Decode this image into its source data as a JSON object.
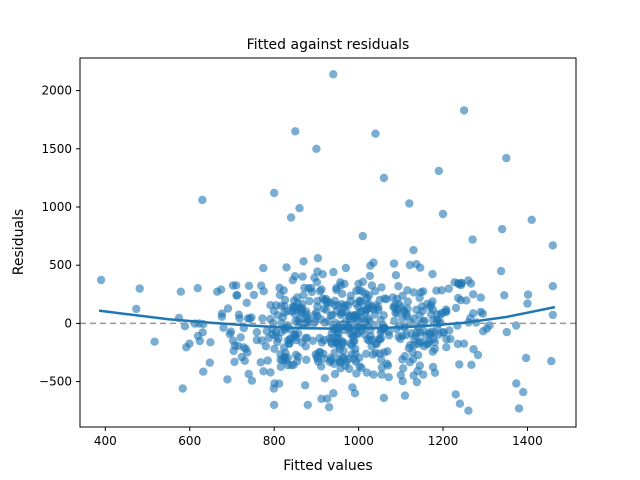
{
  "chart_data": {
    "type": "scatter",
    "title": "Fitted against residuals",
    "xlabel": "Fitted values",
    "ylabel": "Residuals",
    "xlim": [
      340,
      1515
    ],
    "ylim": [
      -890,
      2280
    ],
    "xticks": [
      400,
      600,
      800,
      1000,
      1200,
      1400
    ],
    "yticks": [
      -500,
      0,
      500,
      1000,
      1500,
      2000
    ],
    "grid": false,
    "colors": {
      "points": "#1f77b4",
      "trend": "#1f77b4",
      "zero_line": "#999999"
    },
    "reference_line": {
      "y": 0,
      "style": "dashed"
    },
    "trend_line": {
      "x": [
        385,
        450,
        550,
        650,
        750,
        850,
        950,
        1050,
        1150,
        1250,
        1350,
        1465
      ],
      "y": [
        110,
        80,
        35,
        5,
        -20,
        -40,
        -45,
        -40,
        -25,
        5,
        55,
        140
      ]
    },
    "highlighted_points": {
      "x": [
        940,
        1250,
        850,
        1040,
        900,
        1350,
        1060,
        1190,
        800,
        630,
        860,
        840,
        1120,
        1410,
        1200,
        1010,
        1340,
        1460,
        1270,
        1130,
        1400,
        1230,
        1060,
        930,
        1260,
        1380,
        1390,
        940,
        1240,
        1110
      ],
      "y": [
        2140,
        1830,
        1650,
        1630,
        1500,
        1420,
        1250,
        1310,
        1120,
        1060,
        990,
        910,
        1030,
        890,
        940,
        750,
        810,
        670,
        720,
        630,
        170,
        -610,
        -640,
        -720,
        -750,
        -730,
        -590,
        -600,
        -690,
        -620
      ]
    }
  }
}
